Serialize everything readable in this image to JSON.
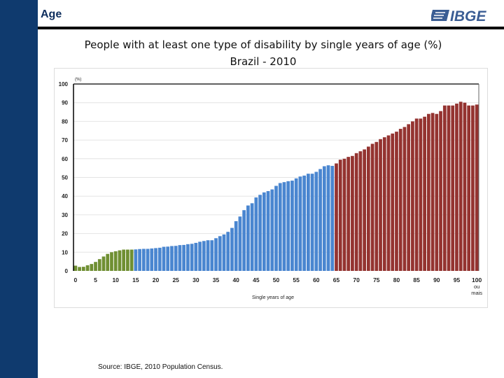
{
  "header": {
    "section": "Age",
    "logo_text": "IBGE"
  },
  "title_line1": "People with at least one type of disability by single years of age (%)",
  "title_line2": "Brazil - 2010",
  "source": "Source: IBGE, 2010 Population Census.",
  "chart_data": {
    "type": "bar",
    "unit_label": "(%)",
    "xlabel": "Single years of age",
    "ylabel": "",
    "ylim": [
      0,
      100
    ],
    "yticks": [
      0,
      10,
      20,
      30,
      40,
      50,
      60,
      70,
      80,
      90,
      100
    ],
    "xtick_labels": [
      "0",
      "5",
      "10",
      "15",
      "20",
      "25",
      "30",
      "35",
      "40",
      "45",
      "50",
      "55",
      "60",
      "65",
      "70",
      "75",
      "80",
      "85",
      "90",
      "95",
      "100 ou mais"
    ],
    "grid": true,
    "categories_from": 0,
    "categories_to": 100,
    "last_category_label": "100 ou mais",
    "group_colors": [
      {
        "from": 0,
        "to": 14,
        "color": "#6f8f32"
      },
      {
        "from": 15,
        "to": 64,
        "color": "#4a86d0"
      },
      {
        "from": 65,
        "to": 100,
        "color": "#943330"
      }
    ],
    "values": [
      2.8,
      2.1,
      2.2,
      3.0,
      3.7,
      4.8,
      6.3,
      7.7,
      9.1,
      10.0,
      10.5,
      11.0,
      11.4,
      11.4,
      11.4,
      11.5,
      11.7,
      11.8,
      11.8,
      12.0,
      12.2,
      12.4,
      12.9,
      13.0,
      13.3,
      13.4,
      13.8,
      13.9,
      14.3,
      14.5,
      15.0,
      15.6,
      16.0,
      16.4,
      16.4,
      17.5,
      18.6,
      19.5,
      20.9,
      23.0,
      26.6,
      29.1,
      32.5,
      35.0,
      36.2,
      39.3,
      40.7,
      42.0,
      42.7,
      43.6,
      45.5,
      47.0,
      47.5,
      48.0,
      48.3,
      49.5,
      50.5,
      51.0,
      52.0,
      52.0,
      53.0,
      54.5,
      56.0,
      56.5,
      56.2,
      57.5,
      59.5,
      60.0,
      61.0,
      61.5,
      63.0,
      64.0,
      65.0,
      66.5,
      68.0,
      69.0,
      70.5,
      71.5,
      72.5,
      73.5,
      74.5,
      76.0,
      77.0,
      78.5,
      80.0,
      81.5,
      81.5,
      82.5,
      84.0,
      84.5,
      84.0,
      85.5,
      88.5,
      88.5,
      88.5,
      89.5,
      90.5,
      90.0,
      88.5,
      88.5,
      89.0
    ]
  }
}
